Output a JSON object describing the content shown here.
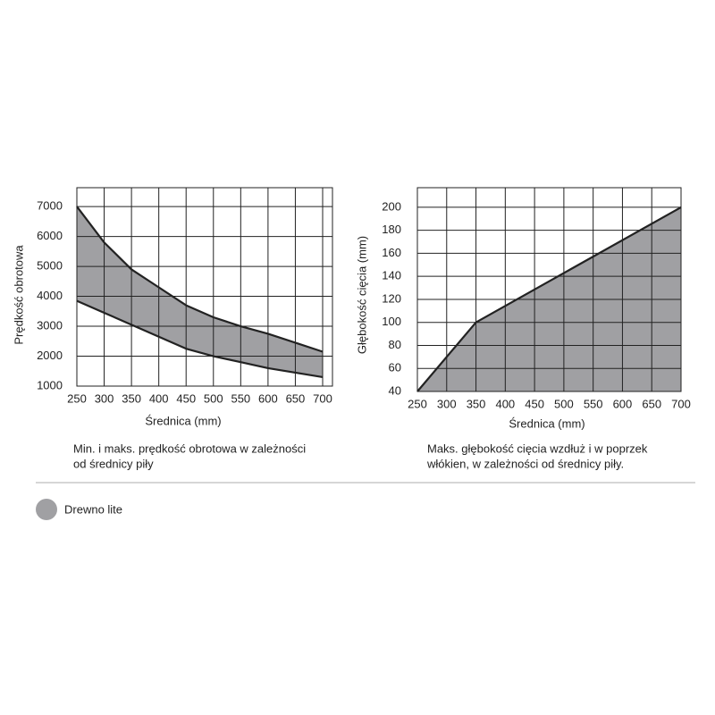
{
  "chart_data": [
    {
      "type": "band",
      "x_label": "Średnica (mm)",
      "y_label": "Prędkość obrotowa",
      "caption": [
        "Min. i maks. prędkość obrotowa w zależności",
        "od średnicy piły"
      ],
      "x": [
        250,
        300,
        350,
        400,
        450,
        500,
        550,
        600,
        650,
        700
      ],
      "upper": [
        7000,
        5800,
        4900,
        4300,
        3700,
        3300,
        3000,
        2750,
        2450,
        2150
      ],
      "lower": [
        3850,
        3450,
        3050,
        2650,
        2250,
        2000,
        1800,
        1600,
        1450,
        1300
      ],
      "color": "#a0a0a3",
      "line_color": "#222222",
      "xlim": [
        250,
        718
      ],
      "ylim": [
        1000,
        7630
      ],
      "xticks": [
        250,
        300,
        350,
        400,
        450,
        500,
        550,
        600,
        650,
        700
      ],
      "yticks": [
        1000,
        2000,
        3000,
        4000,
        5000,
        6000,
        7000
      ],
      "grid": true
    },
    {
      "type": "area",
      "x_label": "Średnica (mm)",
      "y_label": "Głębokość cięcia (mm)",
      "caption": [
        "Maks. głębokość cięcia wzdłuż i w poprzek",
        "włókien, w zależności od średnicy piły."
      ],
      "x": [
        250,
        350,
        700
      ],
      "values": [
        40,
        100,
        200
      ],
      "color": "#a0a0a3",
      "line_color": "#222222",
      "xlim": [
        250,
        700
      ],
      "ylim": [
        40,
        217
      ],
      "xticks": [
        250,
        300,
        350,
        400,
        450,
        500,
        550,
        600,
        650,
        700
      ],
      "yticks": [
        40,
        60,
        80,
        100,
        120,
        140,
        160,
        180,
        200
      ],
      "grid": true
    }
  ],
  "legend": {
    "label": "Drewno lite",
    "color": "#a0a0a3"
  }
}
